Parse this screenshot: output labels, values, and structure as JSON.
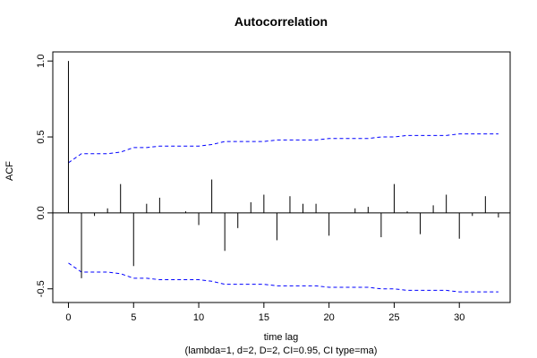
{
  "chart_data": {
    "type": "bar",
    "title": "Autocorrelation",
    "xlabel": "time lag",
    "subtitle": "(lambda=1, d=2, D=2, CI=0.95, CI type=ma)",
    "ylabel": "ACF",
    "xlim": [
      -1.2,
      33.9
    ],
    "ylim": [
      -0.59,
      1.06
    ],
    "x_ticks": [
      0,
      5,
      10,
      15,
      20,
      25,
      30
    ],
    "y_ticks": [
      -0.5,
      0.0,
      0.5,
      1.0
    ],
    "y_tick_labels": [
      "-0.5",
      "0.0",
      "0.5",
      "1.0"
    ],
    "lags": [
      0,
      1,
      2,
      3,
      4,
      5,
      6,
      7,
      8,
      9,
      10,
      11,
      12,
      13,
      14,
      15,
      16,
      17,
      18,
      19,
      20,
      21,
      22,
      23,
      24,
      25,
      26,
      27,
      28,
      29,
      30,
      31,
      32,
      33
    ],
    "acf": [
      1.0,
      -0.43,
      -0.02,
      0.03,
      0.19,
      -0.35,
      0.06,
      0.1,
      0.0,
      0.01,
      -0.08,
      0.22,
      -0.25,
      -0.1,
      0.07,
      0.12,
      -0.18,
      0.11,
      0.06,
      0.06,
      -0.15,
      0.0,
      0.03,
      0.04,
      -0.16,
      0.19,
      0.01,
      -0.14,
      0.05,
      0.12,
      -0.17,
      -0.02,
      0.11,
      -0.03
    ],
    "ci_upper": [
      0.33,
      0.39,
      0.39,
      0.39,
      0.4,
      0.43,
      0.43,
      0.44,
      0.44,
      0.44,
      0.44,
      0.45,
      0.47,
      0.47,
      0.47,
      0.47,
      0.48,
      0.48,
      0.48,
      0.48,
      0.49,
      0.49,
      0.49,
      0.49,
      0.5,
      0.5,
      0.51,
      0.51,
      0.51,
      0.51,
      0.52,
      0.52,
      0.52,
      0.52
    ],
    "colors": {
      "bars": "#000000",
      "ci": "#0000ff",
      "zero_line": "#000000"
    }
  }
}
